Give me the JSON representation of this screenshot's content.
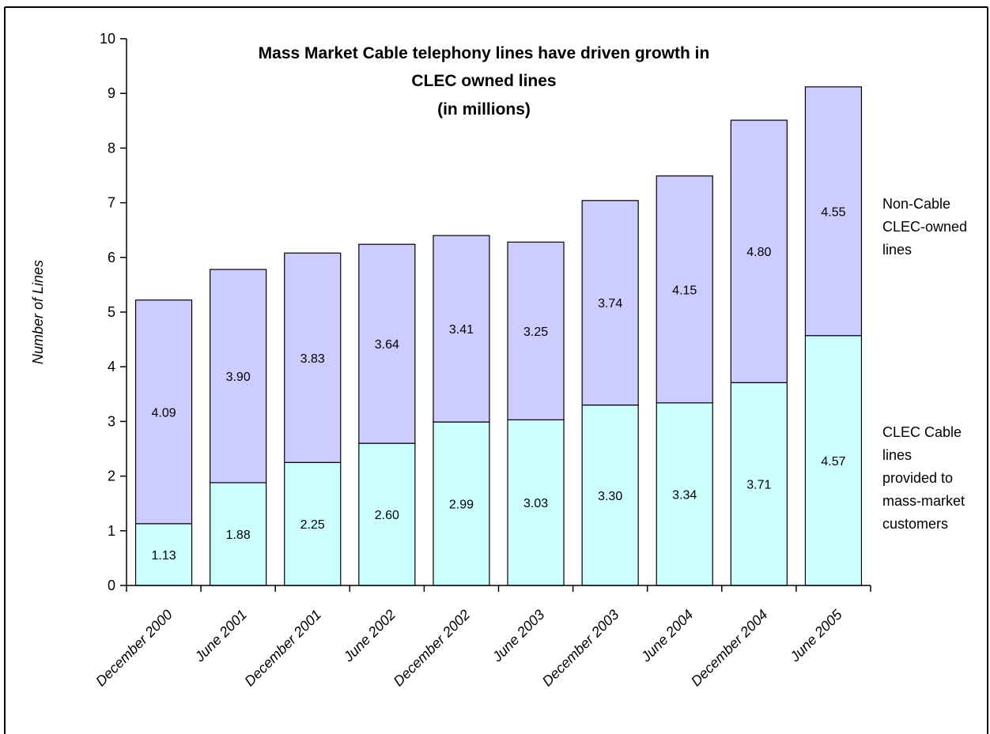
{
  "chart_data": {
    "type": "bar",
    "stacked": true,
    "title_lines": [
      "Mass Market Cable telephony lines have driven growth in",
      "CLEC owned lines",
      "(in millions)"
    ],
    "ylabel": "Number of Lines",
    "xlabel": "",
    "ylim": [
      0,
      10
    ],
    "yticks": [
      0,
      1,
      2,
      3,
      4,
      5,
      6,
      7,
      8,
      9,
      10
    ],
    "categories": [
      "December 2000",
      "June 2001",
      "December 2001",
      "June 2002",
      "December 2002",
      "June 2003",
      "December 2003",
      "June 2004",
      "December 2004",
      "June 2005"
    ],
    "series": [
      {
        "name": "CLEC Cable lines provided to mass-market customers",
        "legend_lines": [
          "CLEC Cable",
          "lines",
          "provided to",
          "mass-market",
          "customers"
        ],
        "color": "#CCFFFF",
        "values": [
          1.13,
          1.88,
          2.25,
          2.6,
          2.99,
          3.03,
          3.3,
          3.34,
          3.71,
          4.57
        ],
        "labels": [
          "1.13",
          "1.88",
          "2.25",
          "2.60",
          "2.99",
          "3.03",
          "3.30",
          "3.34",
          "3.71",
          "4.57"
        ]
      },
      {
        "name": "Non-Cable CLEC-owned lines",
        "legend_lines": [
          "Non-Cable",
          "CLEC-owned",
          "lines"
        ],
        "color": "#CCCCFF",
        "values": [
          4.09,
          3.9,
          3.83,
          3.64,
          3.41,
          3.25,
          3.74,
          4.15,
          4.8,
          4.55
        ],
        "labels": [
          "4.09",
          "3.90",
          "3.83",
          "3.64",
          "3.41",
          "3.25",
          "3.74",
          "4.15",
          "4.80",
          "4.55"
        ]
      }
    ],
    "grid": false,
    "legend_position": "right"
  }
}
